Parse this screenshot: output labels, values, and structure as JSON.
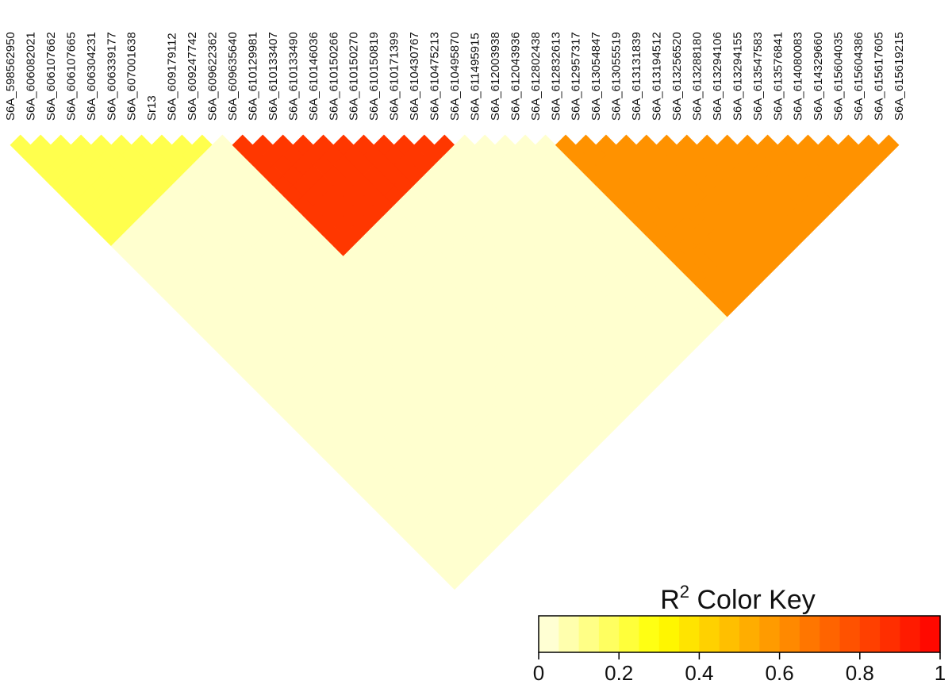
{
  "chart_data": {
    "type": "heatmap",
    "subtype": "linkage-disequilibrium-triangle",
    "metric": "R2",
    "markers": [
      "S6A_598562950",
      "S6A_606082021",
      "S6A_606107662",
      "S6A_606107665",
      "S6A_606304231",
      "S6A_606339177",
      "S6A_607001638",
      "Sr13",
      "S6A_609179112",
      "S6A_609247742",
      "S6A_609622362",
      "S6A_609635640",
      "S6A_610129981",
      "S6A_610133407",
      "S6A_610133490",
      "S6A_610146036",
      "S6A_610150266",
      "S6A_610150270",
      "S6A_610150819",
      "S6A_610171399",
      "S6A_610430767",
      "S6A_610475213",
      "S6A_610495870",
      "S6A_611495915",
      "S6A_612003938",
      "S6A_612043936",
      "S6A_612802438",
      "S6A_612832613",
      "S6A_612957317",
      "S6A_613054847",
      "S6A_613055519",
      "S6A_613131839",
      "S6A_613194512",
      "S6A_613256520",
      "S6A_613288180",
      "S6A_613294106",
      "S6A_613294155",
      "S6A_613547583",
      "S6A_613576841",
      "S6A_614080083",
      "S6A_614329660",
      "S6A_615604035",
      "S6A_615604386",
      "S6A_615617605",
      "S6A_615619215"
    ],
    "blocks": [
      {
        "first": 11,
        "last": 22,
        "r2": 0.85
      },
      {
        "first": 27,
        "last": 44,
        "r2": 0.6
      },
      {
        "first": 0,
        "last": 10,
        "r2": 0.2
      }
    ],
    "background_r2": 0.03,
    "color_key": {
      "title": "R",
      "title_sup": "2",
      "title_rest": " Color Key",
      "range": [
        0,
        1
      ],
      "tick_values": [
        0,
        0.2,
        0.4,
        0.6,
        0.8,
        1
      ],
      "tick_labels": [
        "0",
        "0.2",
        "0.4",
        "0.6",
        "0.8",
        "1"
      ],
      "steps": 20,
      "low_color": "#ffffe6",
      "mid_color": "#ffff00",
      "high_color": "#ff0000"
    }
  }
}
